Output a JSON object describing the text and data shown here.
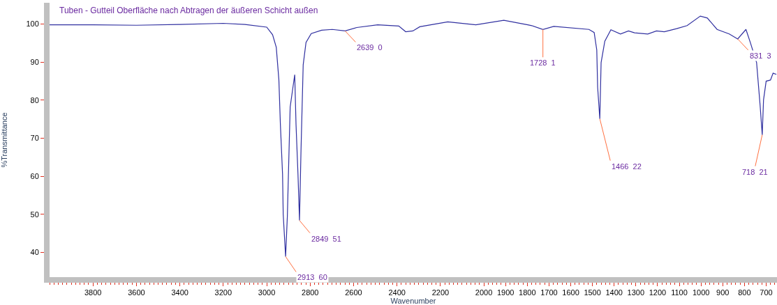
{
  "chart_data": {
    "type": "line",
    "title": "Tuben - Gutteil Oberfläche nach Abtragen der äußeren Schicht außen",
    "xlabel": "Wavenumber",
    "ylabel": "%Transmittance",
    "xlim": [
      4000,
      650
    ],
    "ylim": [
      33.5,
      105.6
    ],
    "xticks": [
      3800,
      3600,
      3400,
      3200,
      3000,
      2800,
      2600,
      2400,
      2200,
      2000,
      1900,
      1800,
      1700,
      1600,
      1500,
      1400,
      1300,
      1200,
      1100,
      1000,
      900,
      800,
      700
    ],
    "yticks": [
      40,
      50,
      60,
      70,
      80,
      90,
      100
    ],
    "marker": "none",
    "line_style": "solid",
    "series": [
      {
        "color": "#3030a0",
        "x": [
          4000,
          3800,
          3600,
          3400,
          3200,
          3100,
          3000,
          2973,
          2956,
          2944,
          2937,
          2927,
          2924,
          2913,
          2905,
          2892,
          2871,
          2865,
          2856,
          2849,
          2842,
          2832,
          2819,
          2795,
          2747,
          2698,
          2639,
          2585,
          2489,
          2392,
          2360,
          2327,
          2295,
          2166,
          2037,
          1908,
          1798,
          1779,
          1728,
          1678,
          1516,
          1492,
          1480,
          1476,
          1466,
          1460,
          1443,
          1415,
          1371,
          1334,
          1306,
          1245,
          1205,
          1169,
          1112,
          1064,
          1003,
          971,
          926,
          870,
          831,
          793,
          773,
          744,
          728,
          718,
          712,
          700,
          680,
          668,
          653
        ],
        "values": [
          99.8,
          99.8,
          99.7,
          99.9,
          100.2,
          99.9,
          99.2,
          97.2,
          93.9,
          85.4,
          73.6,
          60.5,
          50,
          38.9,
          49.4,
          78.2,
          86.7,
          73.6,
          60.5,
          48.4,
          67,
          89.3,
          95.2,
          97.5,
          98.4,
          98.6,
          98.2,
          99.1,
          99.8,
          99.5,
          98,
          98.2,
          99.3,
          100.6,
          99.8,
          101,
          99.8,
          99.6,
          98.6,
          99.4,
          98.6,
          97.8,
          93.2,
          83.4,
          75.1,
          89.9,
          95.5,
          98.5,
          97.4,
          98.2,
          97.7,
          97.4,
          98.2,
          98,
          98.8,
          99.6,
          102.1,
          101.6,
          98.6,
          97.4,
          96.1,
          98.6,
          95.2,
          89.9,
          78.8,
          70.9,
          80.1,
          85,
          85.3,
          87.1,
          86.8
        ]
      }
    ],
    "annotations": [
      {
        "text": "2913  60",
        "x": 2913,
        "y": 38.9
      },
      {
        "text": "2849  51",
        "x": 2849,
        "y": 48.4
      },
      {
        "text": "2639  0",
        "x": 2639,
        "y": 98.2
      },
      {
        "text": "1728  1",
        "x": 1728,
        "y": 98.6
      },
      {
        "text": "1466  22",
        "x": 1466,
        "y": 75.1
      },
      {
        "text": "831  3",
        "x": 831,
        "y": 96.1
      },
      {
        "text": "718  21",
        "x": 718,
        "y": 70.9
      }
    ]
  }
}
